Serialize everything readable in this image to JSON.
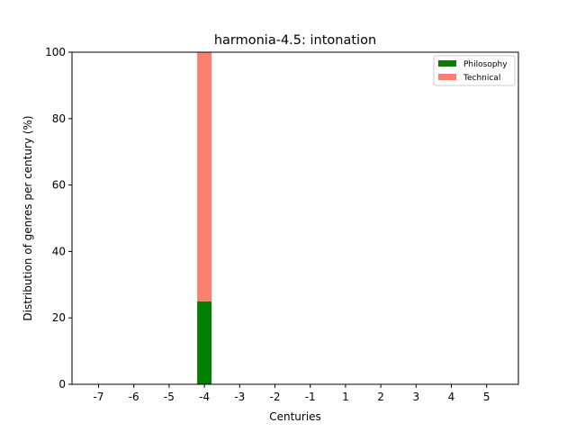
{
  "chart_data": {
    "type": "bar",
    "stacked": true,
    "title": "harmonia-4.5: intonation",
    "xlabel": "Centuries",
    "ylabel": "Distribution of genres per century (%)",
    "categories": [
      "-7",
      "-6",
      "-5",
      "-4",
      "-3",
      "-2",
      "-1",
      "1",
      "2",
      "3",
      "4",
      "5"
    ],
    "ylim": [
      0,
      100
    ],
    "yticks": [
      "0",
      "20",
      "40",
      "60",
      "80",
      "100"
    ],
    "grid": false,
    "legend_position": "top-right",
    "series": [
      {
        "name": "Philosophy",
        "color": "#008000",
        "values": [
          0,
          0,
          0,
          25,
          0,
          0,
          0,
          0,
          0,
          0,
          0,
          0
        ]
      },
      {
        "name": "Technical",
        "color": "#fa8072",
        "values": [
          0,
          0,
          0,
          75,
          0,
          0,
          0,
          0,
          0,
          0,
          0,
          0
        ]
      }
    ]
  }
}
